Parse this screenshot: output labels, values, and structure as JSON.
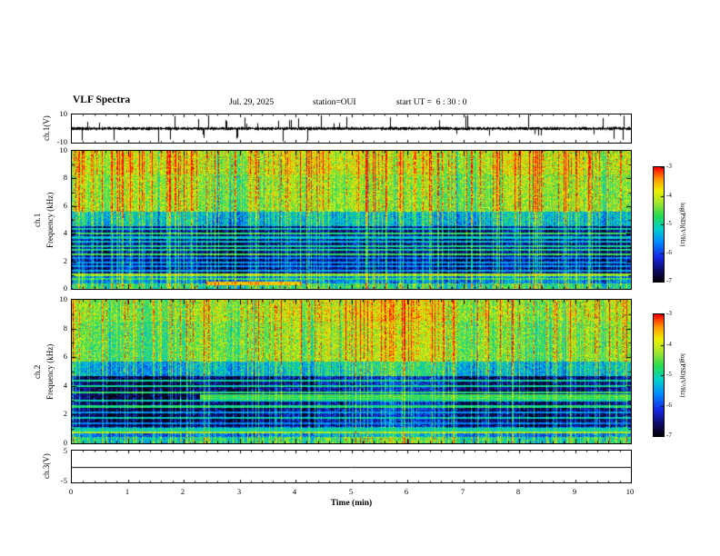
{
  "header": {
    "title": "VLF Spectra",
    "date": "Jul. 29, 2025",
    "station": "station=OUI",
    "start_ut": "start UT =  6 : 30 : 0"
  },
  "panels": {
    "wave": {
      "ylabel": "ch.1(V)"
    },
    "spec1": {
      "channel": "ch.1",
      "ylabel": "Frequency (kHz)"
    },
    "spec2": {
      "channel": "ch.2",
      "ylabel": "Frequency (kHz)"
    },
    "ch3": {
      "ylabel": "ch.3(V)"
    }
  },
  "xaxis": {
    "label": "Time (min)",
    "range": [
      0,
      10
    ],
    "ticks": [
      0,
      1,
      2,
      3,
      4,
      5,
      6,
      7,
      8,
      9,
      10
    ]
  },
  "colorbars": {
    "label": "log(PSD)(V²/Hz)",
    "ticks": [
      -3,
      -4,
      -5,
      -6,
      -7
    ],
    "range": [
      -7,
      -3
    ]
  },
  "chart_data": [
    {
      "type": "line",
      "name": "ch1-voltage",
      "ylabel": "ch.1(V)",
      "ylim": [
        -10,
        10
      ],
      "ytick_labels": [
        "10",
        "-10"
      ],
      "x_range_min": [
        0,
        10
      ],
      "description": "Noisy ch.1 voltage trace centered on 0 V with dense impulsive sferic spikes reaching toward +/-10 V throughout the 10 minute record",
      "noise_v": 1.0,
      "spike_prob": 0.08,
      "seed": 20250729
    },
    {
      "type": "heatmap",
      "name": "ch1-spectrogram",
      "channel": "ch.1",
      "ylabel": "Frequency (kHz)",
      "ylim": [
        0,
        10
      ],
      "yticks": [
        0,
        2,
        4,
        6,
        8,
        10
      ],
      "x_range_min": [
        0,
        10
      ],
      "value_range": [
        -7,
        -3
      ],
      "seed": 11,
      "vertical_impulse_density": 0.45,
      "line_boost": 1.35,
      "background_profile": [
        {
          "f_from": 0.0,
          "f_to": 0.45,
          "v": -4.9
        },
        {
          "f_from": 0.45,
          "f_to": 1.15,
          "v": -5.7
        },
        {
          "f_from": 1.15,
          "f_to": 4.6,
          "v": -6.55
        },
        {
          "f_from": 4.6,
          "f_to": 5.6,
          "v": -5.3
        },
        {
          "f_from": 5.6,
          "f_to": 8.3,
          "v": -4.35
        },
        {
          "f_from": 8.3,
          "f_to": 10.01,
          "v": -4.1
        }
      ],
      "horizontal_lines_khz": [
        0.75,
        1.05,
        1.35,
        1.65,
        1.95,
        2.25,
        2.55,
        2.85,
        3.15,
        3.45,
        3.75,
        4.05,
        4.35
      ],
      "features": [
        {
          "kind": "band",
          "f_center": 0.45,
          "f_width": 0.2,
          "t_from": 2.4,
          "t_to": 4.1,
          "v": -3.7
        }
      ],
      "description": "Broadband VLF spectrogram: yellow-green background above ~5 kHz with red sferic streaks, dark blue below ~4.5 kHz crossed by cyan power-line harmonic lines and dense vertical impulses; orange streak near 0.5 kHz between ~2.4 and ~4.1 min"
    },
    {
      "type": "heatmap",
      "name": "ch2-spectrogram",
      "channel": "ch.2",
      "ylabel": "Frequency (kHz)",
      "ylim": [
        0,
        10
      ],
      "yticks": [
        0,
        2,
        4,
        6,
        8,
        10
      ],
      "x_range_min": [
        0,
        10
      ],
      "value_range": [
        -7,
        -3
      ],
      "seed": 22,
      "vertical_impulse_density": 0.45,
      "line_boost": 1.25,
      "background_profile": [
        {
          "f_from": 0.0,
          "f_to": 0.5,
          "v": -4.8
        },
        {
          "f_from": 0.5,
          "f_to": 1.2,
          "v": -5.6
        },
        {
          "f_from": 1.2,
          "f_to": 4.7,
          "v": -6.5
        },
        {
          "f_from": 4.7,
          "f_to": 5.7,
          "v": -5.2
        },
        {
          "f_from": 5.7,
          "f_to": 8.5,
          "v": -4.35
        },
        {
          "f_from": 8.5,
          "f_to": 10.01,
          "v": -4.15
        }
      ],
      "horizontal_lines_khz": [
        0.8,
        1.4,
        1.8,
        2.2,
        2.6,
        3.0,
        3.6,
        4.0,
        4.4
      ],
      "features": [
        {
          "kind": "band",
          "f_center": 3.25,
          "f_width": 0.3,
          "t_from": 2.3,
          "t_to": 10,
          "v": -4.7
        },
        {
          "kind": "band",
          "f_center": 1.0,
          "f_width": 0.2,
          "t_from": 0,
          "t_to": 10,
          "v": -5.1
        }
      ],
      "description": "Same broadband structure as ch.1 plus a continuous green-cyan carrier band near 3.2 kHz appearing from ~2.3 min to the end of the record, and a persistent line near 1 kHz"
    },
    {
      "type": "line",
      "name": "ch3-voltage",
      "ylabel": "ch.3(V)",
      "ylim": [
        -5,
        5
      ],
      "ytick_labels": [
        "5",
        "-5"
      ],
      "flat_value": 0,
      "description": "Flat trace at 0 V (channel inactive)"
    }
  ]
}
